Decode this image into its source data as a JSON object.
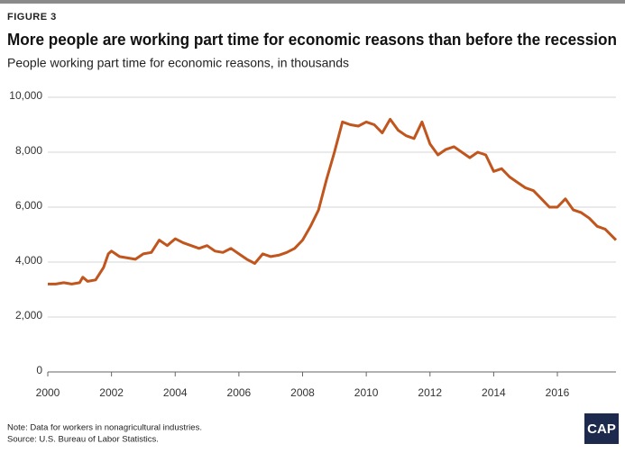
{
  "chart_data": {
    "type": "line",
    "figure_label": "FIGURE 3",
    "title": "More people are working part time for economic reasons than before the recession",
    "subtitle": "People working part time for economic reasons, in thousands",
    "notes": [
      "Note: Data for workers in nonagricultural industries.",
      "Source: U.S. Bureau of Labor Statistics."
    ],
    "logo": "CAP",
    "color": "#c0561e",
    "grid": true,
    "xlim": [
      2000,
      2017.84
    ],
    "xticks": [
      2000,
      2002,
      2004,
      2006,
      2008,
      2010,
      2012,
      2014,
      2016
    ],
    "ylim": [
      0,
      10000
    ],
    "yticks": [
      0,
      {
        "value": 2000,
        "label": "2,000"
      },
      {
        "value": 4000,
        "label": "4,000"
      },
      {
        "value": 6000,
        "label": "6,000"
      },
      {
        "value": 8000,
        "label": "8,000"
      },
      {
        "value": 10000,
        "label": "10,000"
      }
    ],
    "x": [
      2000,
      2000.25,
      2000.5,
      2000.75,
      2001,
      2001.1,
      2001.25,
      2001.5,
      2001.75,
      2001.9,
      2002,
      2002.25,
      2002.5,
      2002.75,
      2003,
      2003.25,
      2003.5,
      2003.75,
      2004,
      2004.25,
      2004.5,
      2004.75,
      2005,
      2005.25,
      2005.5,
      2005.75,
      2006,
      2006.25,
      2006.5,
      2006.75,
      2007,
      2007.25,
      2007.5,
      2007.75,
      2008,
      2008.25,
      2008.5,
      2008.75,
      2009,
      2009.25,
      2009.5,
      2009.75,
      2010,
      2010.25,
      2010.5,
      2010.75,
      2011,
      2011.25,
      2011.5,
      2011.75,
      2012,
      2012.25,
      2012.5,
      2012.75,
      2013,
      2013.25,
      2013.5,
      2013.75,
      2014,
      2014.25,
      2014.5,
      2014.75,
      2015,
      2015.25,
      2015.5,
      2015.75,
      2016,
      2016.25,
      2016.5,
      2016.75,
      2017,
      2017.25,
      2017.5,
      2017.84
    ],
    "series": [
      {
        "name": "People working part time for economic reasons",
        "color": "#c0561e",
        "values": [
          3200,
          3200,
          3250,
          3200,
          3250,
          3450,
          3300,
          3350,
          3800,
          4300,
          4400,
          4200,
          4150,
          4100,
          4300,
          4350,
          4800,
          4600,
          4850,
          4700,
          4600,
          4500,
          4600,
          4400,
          4350,
          4500,
          4300,
          4100,
          3950,
          4300,
          4200,
          4250,
          4350,
          4500,
          4800,
          5300,
          5900,
          7000,
          8000,
          9100,
          9000,
          8950,
          9100,
          9000,
          8700,
          9200,
          8800,
          8600,
          8500,
          9100,
          8300,
          7900,
          8100,
          8200,
          8000,
          7800,
          8000,
          7900,
          7300,
          7400,
          7100,
          6900,
          6700,
          6600,
          6300,
          6000,
          6000,
          6300,
          5900,
          5800,
          5600,
          5300,
          5200,
          4800
        ]
      }
    ]
  }
}
